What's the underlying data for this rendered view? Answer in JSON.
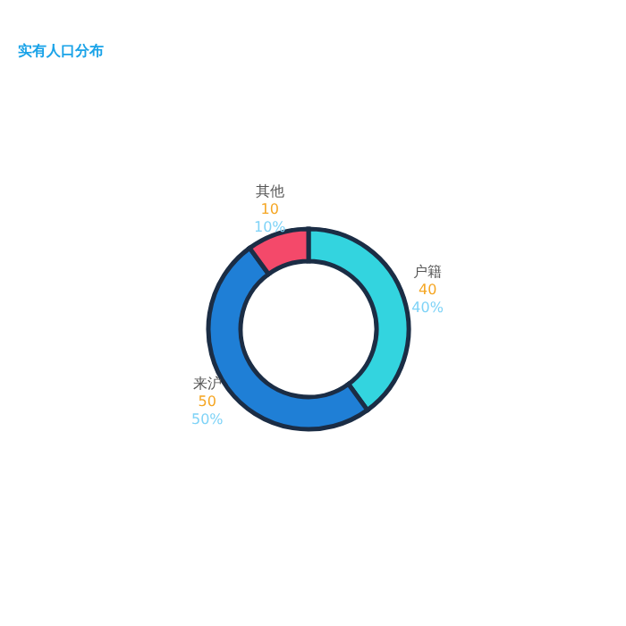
{
  "chart_data": {
    "type": "donut",
    "title": "实有人口分布",
    "categories": [
      "户籍",
      "来沪",
      "其他"
    ],
    "values": [
      40,
      50,
      10
    ],
    "colors": [
      "#33d4df",
      "#1f7fd6",
      "#f4496a"
    ],
    "value_labels": [
      "40",
      "50",
      "10"
    ],
    "annotations": [
      "40%",
      "50%",
      "10%"
    ],
    "legend": false
  }
}
